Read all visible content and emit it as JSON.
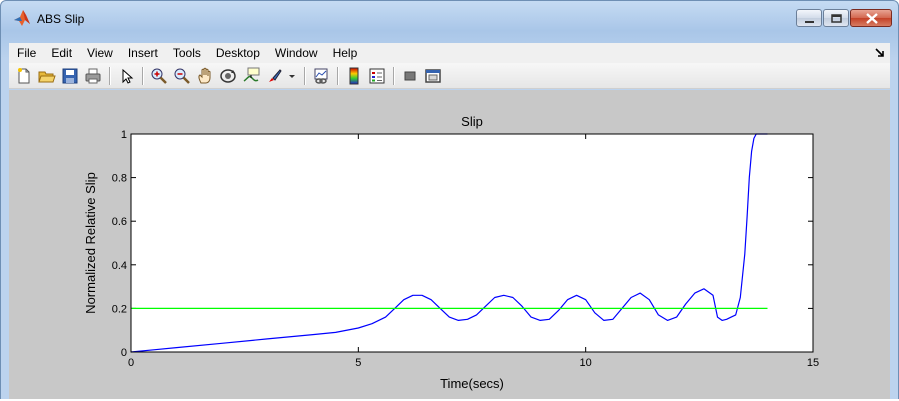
{
  "window": {
    "title": "ABS Slip",
    "icon": "matlab-icon",
    "controls": [
      "minimize-icon",
      "maximize-icon",
      "close-icon"
    ]
  },
  "menu": {
    "items": [
      "File",
      "Edit",
      "View",
      "Insert",
      "Tools",
      "Desktop",
      "Window",
      "Help"
    ],
    "dock_icon": "dock-arrow-icon"
  },
  "toolbar": {
    "buttons": [
      "new-figure-icon",
      "open-file-icon",
      "save-figure-icon",
      "print-figure-icon",
      "edit-plot-icon",
      "zoom-in-icon",
      "zoom-out-icon",
      "pan-icon",
      "rotate-3d-icon",
      "data-cursor-icon",
      "brush-icon",
      "link-plot-icon",
      "colorbar-icon",
      "legend-icon",
      "hide-plot-tools-icon",
      "show-plot-tools-icon"
    ]
  },
  "colors": {
    "slip_line": "#0000ff",
    "reference_line": "#00ff00",
    "figure_bg": "#c8c8c8",
    "axes_bg": "#ffffff"
  },
  "chart_data": {
    "type": "line",
    "title": "Slip",
    "xlabel": "Time(secs)",
    "ylabel": "Normalized Relative Slip",
    "xlim": [
      0,
      15
    ],
    "ylim": [
      0,
      1
    ],
    "xticks": [
      0,
      5,
      10,
      15
    ],
    "yticks": [
      0,
      0.2,
      0.4,
      0.6,
      0.8,
      1
    ],
    "xtick_labels": [
      "0",
      "5",
      "10",
      "15"
    ],
    "ytick_labels": [
      "0",
      "0.2",
      "0.4",
      "0.6",
      "0.8",
      "1"
    ],
    "grid": false,
    "legend": "none",
    "series": [
      {
        "color": "#0000ff",
        "x": [
          0,
          0.5,
          1,
          2,
          3,
          4,
          4.5,
          5,
          5.3,
          5.6,
          5.8,
          6.0,
          6.2,
          6.4,
          6.6,
          6.8,
          7.0,
          7.2,
          7.4,
          7.6,
          7.8,
          8.0,
          8.2,
          8.4,
          8.6,
          8.8,
          9.0,
          9.2,
          9.4,
          9.6,
          9.8,
          10.0,
          10.2,
          10.4,
          10.6,
          10.8,
          11.0,
          11.2,
          11.4,
          11.6,
          11.8,
          12.0,
          12.2,
          12.4,
          12.6,
          12.8,
          12.9,
          13.0,
          13.1,
          13.2,
          13.3,
          13.4,
          13.5,
          13.55,
          13.6,
          13.65,
          13.7,
          13.75,
          13.8,
          13.85,
          14.0
        ],
        "y": [
          0,
          0.01,
          0.02,
          0.04,
          0.06,
          0.08,
          0.09,
          0.11,
          0.13,
          0.16,
          0.2,
          0.24,
          0.26,
          0.26,
          0.24,
          0.2,
          0.16,
          0.145,
          0.15,
          0.17,
          0.21,
          0.25,
          0.26,
          0.25,
          0.21,
          0.16,
          0.145,
          0.15,
          0.19,
          0.24,
          0.26,
          0.24,
          0.18,
          0.145,
          0.15,
          0.2,
          0.25,
          0.27,
          0.24,
          0.17,
          0.145,
          0.16,
          0.22,
          0.27,
          0.29,
          0.26,
          0.16,
          0.145,
          0.15,
          0.16,
          0.17,
          0.25,
          0.45,
          0.62,
          0.8,
          0.92,
          0.98,
          1.0,
          1.0,
          1.0,
          1.0
        ]
      },
      {
        "color": "#00ff00",
        "x": [
          0,
          14
        ],
        "y": [
          0.2,
          0.2
        ]
      }
    ]
  }
}
